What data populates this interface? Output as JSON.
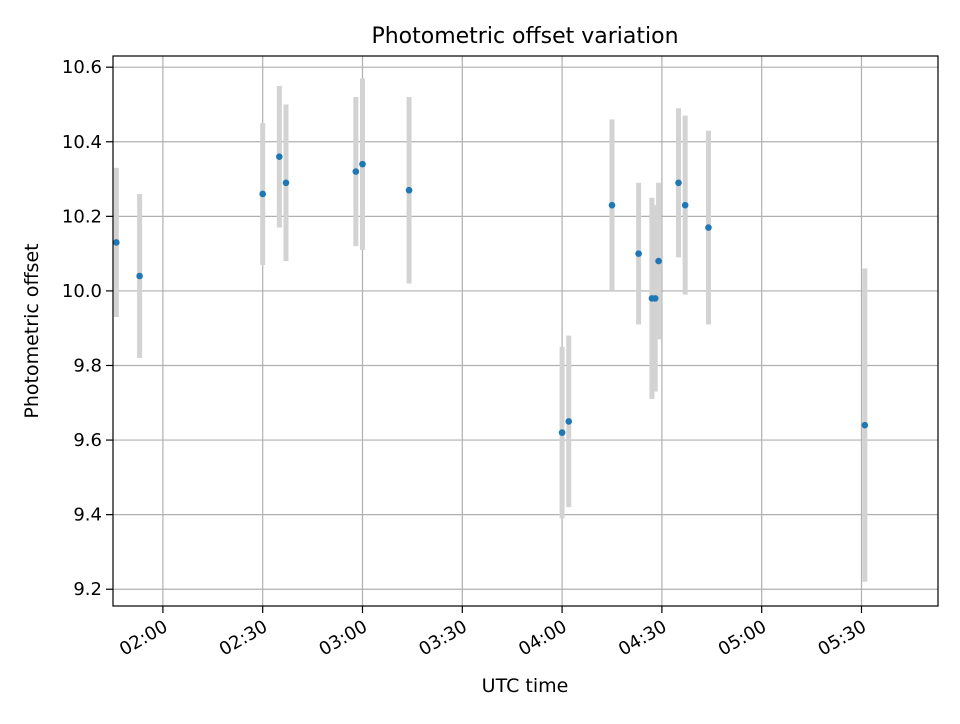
{
  "chart_data": {
    "type": "scatter",
    "title": "Photometric offset variation",
    "xlabel": "UTC time",
    "ylabel": "Photometric offset",
    "grid": true,
    "xlim": [
      "01:45",
      "05:53"
    ],
    "ylim": [
      9.155,
      10.63
    ],
    "x_ticks": [
      "02:00",
      "02:30",
      "03:00",
      "03:30",
      "04:00",
      "04:30",
      "05:00",
      "05:30"
    ],
    "y_ticks": [
      "9.2",
      "9.4",
      "9.6",
      "9.8",
      "10.0",
      "10.2",
      "10.4",
      "10.6"
    ],
    "errorbar_color": "#d3d3d3",
    "marker_color": "#1f77b4",
    "points": [
      {
        "t": "01:46",
        "y": 10.13,
        "err": 0.2
      },
      {
        "t": "01:53",
        "y": 10.04,
        "err": 0.22
      },
      {
        "t": "02:30",
        "y": 10.26,
        "err": 0.19
      },
      {
        "t": "02:35",
        "y": 10.36,
        "err": 0.19
      },
      {
        "t": "02:37",
        "y": 10.29,
        "err": 0.21
      },
      {
        "t": "02:58",
        "y": 10.32,
        "err": 0.2
      },
      {
        "t": "03:00",
        "y": 10.34,
        "err": 0.23
      },
      {
        "t": "03:14",
        "y": 10.27,
        "err": 0.25
      },
      {
        "t": "04:00",
        "y": 9.62,
        "err": 0.23
      },
      {
        "t": "04:02",
        "y": 9.65,
        "err": 0.23
      },
      {
        "t": "04:15",
        "y": 10.23,
        "err": 0.23
      },
      {
        "t": "04:23",
        "y": 10.1,
        "err": 0.19
      },
      {
        "t": "04:27",
        "y": 9.98,
        "err": 0.27
      },
      {
        "t": "04:28",
        "y": 9.98,
        "err": 0.25
      },
      {
        "t": "04:29",
        "y": 10.08,
        "err": 0.21
      },
      {
        "t": "04:35",
        "y": 10.29,
        "err": 0.2
      },
      {
        "t": "04:37",
        "y": 10.23,
        "err": 0.24
      },
      {
        "t": "04:44",
        "y": 10.17,
        "err": 0.26
      },
      {
        "t": "05:31",
        "y": 9.64,
        "err": 0.42
      }
    ]
  }
}
